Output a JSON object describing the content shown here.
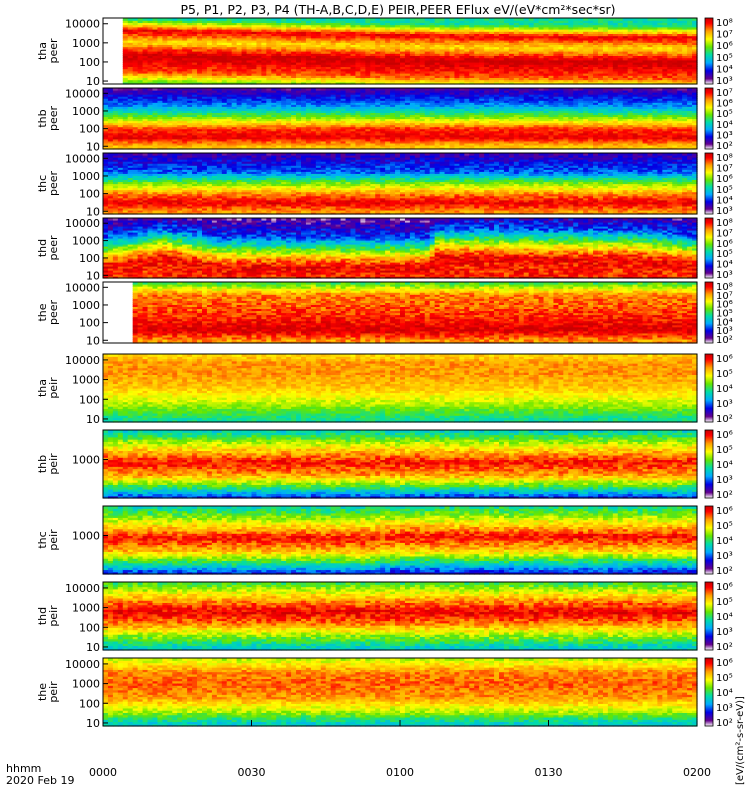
{
  "title": "P5, P1, P2, P3, P4 (TH-A,B,C,D,E) PEIR,PEER EFlux eV/(eV*cm²*sec*sr)",
  "colorbar_unit_label": "[eV/(cm²-s-sr-eV)]",
  "x_axis": {
    "label": "hhmm",
    "date": "2020 Feb 19",
    "ticks": [
      "0000",
      "0030",
      "0100",
      "0130",
      "0200"
    ]
  },
  "colors": {
    "background": "#ffffff",
    "frame": "#000000",
    "high": "#ff0000",
    "low": "#ffffff"
  },
  "chart_data": [
    {
      "type": "heatmap",
      "name": "tha peer",
      "ylabel": [
        "tha",
        "peer"
      ],
      "yscale": "log",
      "ylim": [
        7,
        20000
      ],
      "yticks": [
        "10",
        "100",
        "1000",
        "10000"
      ],
      "colorbar_ticks": [
        "10³",
        "10⁴",
        "10⁵",
        "10⁶",
        "10⁷",
        "10⁸"
      ],
      "profile": [
        [
          1,
          0.55
        ],
        [
          1.5,
          0.85
        ],
        [
          2.4,
          1.0
        ],
        [
          3.1,
          0.72
        ],
        [
          3.7,
          0.95
        ],
        [
          4.3,
          0.45
        ]
      ],
      "shift": [
        [
          0,
          0
        ],
        [
          0.55,
          -0.3
        ],
        [
          1.0,
          -0.4
        ]
      ],
      "data_start": 0.03,
      "noise": 0.05
    },
    {
      "type": "heatmap",
      "name": "thb peer",
      "ylabel": [
        "thb",
        "peer"
      ],
      "yscale": "log",
      "ylim": [
        7,
        20000
      ],
      "yticks": [
        "10",
        "100",
        "1000",
        "10000"
      ],
      "colorbar_ticks": [
        "10²",
        "10³",
        "10⁴",
        "10⁵",
        "10⁶",
        "10⁷"
      ],
      "profile": [
        [
          1,
          0.75
        ],
        [
          1.5,
          0.95
        ],
        [
          2.0,
          0.88
        ],
        [
          2.7,
          0.55
        ],
        [
          3.3,
          0.3
        ],
        [
          4.3,
          0.1
        ]
      ],
      "shift": [
        [
          0,
          0
        ],
        [
          0.7,
          0.05
        ],
        [
          1.0,
          0
        ]
      ],
      "data_start": 0,
      "noise": 0.05
    },
    {
      "type": "heatmap",
      "name": "thc peer",
      "ylabel": [
        "thc",
        "peer"
      ],
      "yscale": "log",
      "ylim": [
        7,
        20000
      ],
      "yticks": [
        "10",
        "100",
        "1000",
        "10000"
      ],
      "colorbar_ticks": [
        "10³",
        "10⁴",
        "10⁵",
        "10⁶",
        "10⁷",
        "10⁸"
      ],
      "profile": [
        [
          1,
          0.8
        ],
        [
          1.5,
          0.95
        ],
        [
          2.0,
          0.82
        ],
        [
          2.6,
          0.58
        ],
        [
          3.2,
          0.28
        ],
        [
          4.3,
          0.12
        ]
      ],
      "shift": [
        [
          0,
          0
        ],
        [
          1.0,
          0
        ]
      ],
      "data_start": 0,
      "noise": 0.06
    },
    {
      "type": "heatmap",
      "name": "thd peer",
      "ylabel": [
        "thd",
        "peer"
      ],
      "yscale": "log",
      "ylim": [
        7,
        20000
      ],
      "yticks": [
        "10",
        "100",
        "1000",
        "10000"
      ],
      "colorbar_ticks": [
        "10³",
        "10⁴",
        "10⁵",
        "10⁶",
        "10⁷",
        "10⁸"
      ],
      "profile": [
        [
          1,
          0.9
        ],
        [
          1.5,
          0.95
        ],
        [
          2.0,
          0.78
        ],
        [
          2.6,
          0.5
        ],
        [
          3.2,
          0.25
        ],
        [
          4.3,
          0.08
        ]
      ],
      "shift": [
        [
          0,
          0
        ],
        [
          0.1,
          0.55
        ],
        [
          0.2,
          0
        ],
        [
          0.55,
          0
        ],
        [
          0.56,
          0.55
        ],
        [
          0.9,
          0.45
        ],
        [
          1.0,
          0.1
        ]
      ],
      "data_start": 0,
      "noise": 0.08
    },
    {
      "type": "heatmap",
      "name": "the peer",
      "ylabel": [
        "the",
        "peer"
      ],
      "yscale": "log",
      "ylim": [
        7,
        20000
      ],
      "yticks": [
        "10",
        "100",
        "1000",
        "10000"
      ],
      "colorbar_ticks": [
        "10²",
        "10³",
        "10⁴",
        "10⁵",
        "10⁶",
        "10⁷",
        "10⁸"
      ],
      "profile": [
        [
          1,
          0.8
        ],
        [
          1.6,
          0.98
        ],
        [
          2.3,
          0.9
        ],
        [
          3.0,
          0.85
        ],
        [
          3.6,
          0.82
        ],
        [
          4.3,
          0.5
        ]
      ],
      "shift": [
        [
          0,
          0
        ],
        [
          1.0,
          0
        ]
      ],
      "data_start": 0.05,
      "noise": 0.07
    },
    {
      "type": "heatmap",
      "name": "tha peir",
      "ylabel": [
        "tha",
        "peir"
      ],
      "yscale": "log",
      "ylim": [
        7,
        20000
      ],
      "yticks": [
        "10",
        "100",
        "1000",
        "10000"
      ],
      "colorbar_ticks": [
        "10²",
        "10³",
        "10⁴",
        "10⁵",
        "10⁶"
      ],
      "profile": [
        [
          1,
          0.45
        ],
        [
          1.8,
          0.62
        ],
        [
          2.6,
          0.75
        ],
        [
          3.3,
          0.8
        ],
        [
          3.9,
          0.8
        ],
        [
          4.3,
          0.72
        ]
      ],
      "shift": [
        [
          0,
          0
        ],
        [
          1.0,
          0
        ]
      ],
      "data_start": 0,
      "noise": 0.05
    },
    {
      "type": "heatmap",
      "name": "thb peir",
      "ylabel": [
        "thb",
        "peir"
      ],
      "yscale": "log",
      "ylim": [
        20,
        20000
      ],
      "yticks": [
        "1000"
      ],
      "colorbar_ticks": [
        "10²",
        "10³",
        "10⁴",
        "10⁵",
        "10⁶"
      ],
      "profile": [
        [
          1.3,
          0.2
        ],
        [
          1.8,
          0.5
        ],
        [
          2.3,
          0.78
        ],
        [
          2.9,
          0.92
        ],
        [
          3.5,
          0.72
        ],
        [
          4.3,
          0.4
        ]
      ],
      "shift": [
        [
          0,
          0
        ],
        [
          1.0,
          0
        ]
      ],
      "data_start": 0,
      "noise": 0.07
    },
    {
      "type": "heatmap",
      "name": "thc peir",
      "ylabel": [
        "thc",
        "peir"
      ],
      "yscale": "log",
      "ylim": [
        20,
        20000
      ],
      "yticks": [
        "1000"
      ],
      "colorbar_ticks": [
        "10²",
        "10³",
        "10⁴",
        "10⁵",
        "10⁶"
      ],
      "profile": [
        [
          1.3,
          0.2
        ],
        [
          1.8,
          0.48
        ],
        [
          2.3,
          0.75
        ],
        [
          2.9,
          0.92
        ],
        [
          3.5,
          0.7
        ],
        [
          4.3,
          0.42
        ]
      ],
      "shift": [
        [
          0,
          0
        ],
        [
          0.46,
          0
        ],
        [
          0.47,
          0.08
        ],
        [
          1.0,
          0.08
        ]
      ],
      "data_start": 0,
      "noise": 0.07
    },
    {
      "type": "heatmap",
      "name": "thd peir",
      "ylabel": [
        "thd",
        "peir"
      ],
      "yscale": "log",
      "ylim": [
        7,
        20000
      ],
      "yticks": [
        "10",
        "100",
        "1000",
        "10000"
      ],
      "colorbar_ticks": [
        "10²",
        "10³",
        "10⁴",
        "10⁵",
        "10⁶"
      ],
      "profile": [
        [
          1,
          0.4
        ],
        [
          1.6,
          0.6
        ],
        [
          2.2,
          0.82
        ],
        [
          2.8,
          0.95
        ],
        [
          3.4,
          0.8
        ],
        [
          4.3,
          0.5
        ]
      ],
      "shift": [
        [
          0,
          0
        ],
        [
          1.0,
          0
        ]
      ],
      "data_start": 0,
      "noise": 0.07
    },
    {
      "type": "heatmap",
      "name": "the peir",
      "ylabel": [
        "the",
        "peir"
      ],
      "yscale": "log",
      "ylim": [
        7,
        20000
      ],
      "yticks": [
        "10",
        "100",
        "1000",
        "10000"
      ],
      "colorbar_ticks": [
        "10²",
        "10³",
        "10⁴",
        "10⁵",
        "10⁶"
      ],
      "profile": [
        [
          1,
          0.4
        ],
        [
          1.6,
          0.62
        ],
        [
          2.3,
          0.8
        ],
        [
          3.0,
          0.85
        ],
        [
          3.6,
          0.82
        ],
        [
          4.3,
          0.62
        ]
      ],
      "shift": [
        [
          0,
          0
        ],
        [
          1.0,
          0
        ]
      ],
      "data_start": 0,
      "noise": 0.06
    }
  ]
}
